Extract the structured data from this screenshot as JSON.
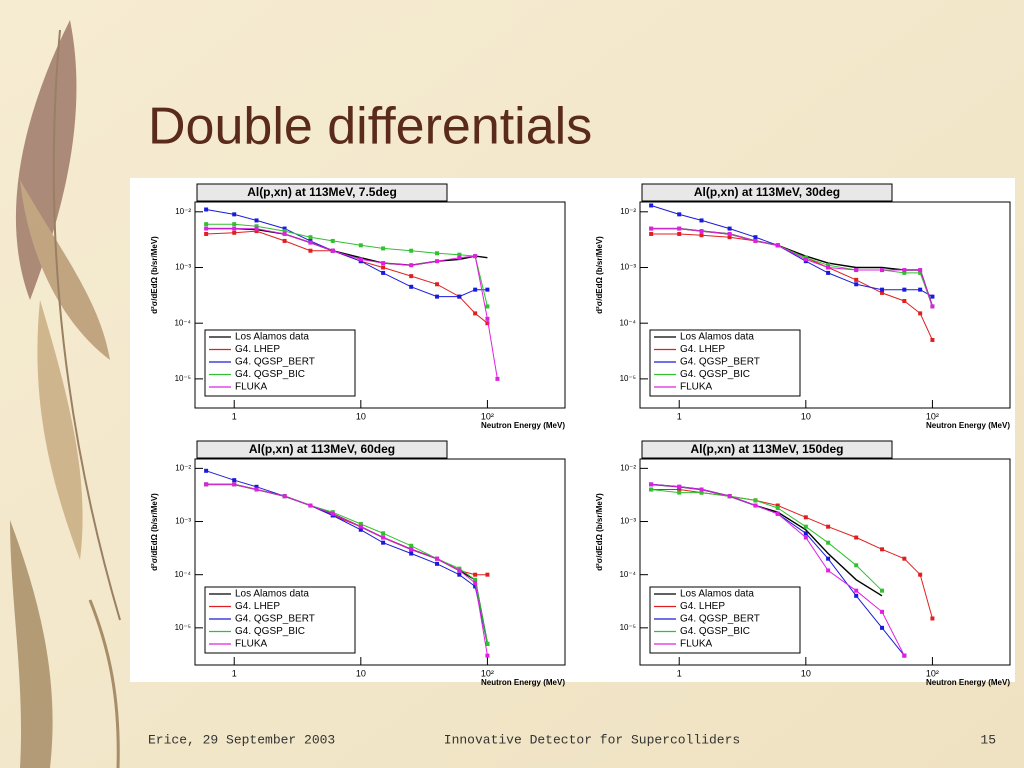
{
  "title": "Double differentials",
  "footer": {
    "left": "Erice, 29 September 2003",
    "center": "Innovative Detector for Supercolliders",
    "page": "15"
  },
  "chart_data": [
    {
      "type": "line",
      "title": "Al(p,xn) at 113MeV, 7.5deg",
      "x_label": "Neutron Energy (MeV)",
      "y_label": "d²σ/dEdΩ (b/sr/MeV)",
      "log_x": true,
      "log_y": true,
      "legend": "lower left",
      "xlim": [
        0.49,
        410
      ],
      "ylim": [
        3e-06,
        0.015
      ],
      "xticks": [
        1,
        10,
        {
          "value": 100,
          "label": "10²"
        }
      ],
      "yticks": [
        {
          "value": 0.01,
          "label": "10⁻²"
        },
        {
          "value": 0.001,
          "label": "10⁻³"
        },
        {
          "value": 0.0001,
          "label": "10⁻⁴"
        },
        {
          "value": 1e-05,
          "label": "10⁻⁵"
        }
      ],
      "x": [
        0.6,
        1,
        1.5,
        2.5,
        4,
        6,
        10,
        15,
        25,
        40,
        60,
        80,
        100,
        120
      ],
      "series": [
        {
          "name": "Los Alamos data",
          "color": "#000000",
          "values": [
            0.005,
            0.005,
            0.0048,
            0.004,
            0.0028,
            0.002,
            0.0015,
            0.0012,
            0.0011,
            0.0013,
            0.0014,
            0.0016,
            0.0015,
            null
          ]
        },
        {
          "name": "G4. LHEP",
          "color": "#e02020",
          "values": [
            0.004,
            0.0042,
            0.0045,
            0.003,
            0.002,
            0.002,
            0.0013,
            0.001,
            0.0007,
            0.0005,
            0.0003,
            0.00015,
            0.0001,
            null
          ]
        },
        {
          "name": "G4. QGSP_BERT",
          "color": "#1a1adc",
          "values": [
            0.011,
            0.009,
            0.007,
            0.005,
            0.003,
            0.002,
            0.0013,
            0.0008,
            0.00045,
            0.0003,
            0.0003,
            0.0004,
            0.0004,
            null
          ]
        },
        {
          "name": "G4. QGSP_BIC",
          "color": "#30c030",
          "values": [
            0.006,
            0.006,
            0.0055,
            0.0045,
            0.0035,
            0.003,
            0.0025,
            0.0022,
            0.002,
            0.0018,
            0.0017,
            0.0016,
            0.0002,
            null
          ]
        },
        {
          "name": "FLUKA",
          "color": "#e020e0",
          "values": [
            0.005,
            0.005,
            0.005,
            0.004,
            0.0028,
            0.002,
            0.0014,
            0.0012,
            0.0011,
            0.0013,
            0.0015,
            0.0016,
            0.00012,
            1e-05
          ]
        }
      ]
    },
    {
      "type": "line",
      "title": "Al(p,xn) at 113MeV, 30deg",
      "x_label": "Neutron Energy (MeV)",
      "y_label": "d²σ/dEdΩ (b/sr/MeV)",
      "log_x": true,
      "log_y": true,
      "legend": "lower left",
      "xlim": [
        0.49,
        410
      ],
      "ylim": [
        3e-06,
        0.015
      ],
      "xticks": [
        1,
        10,
        {
          "value": 100,
          "label": "10²"
        }
      ],
      "yticks": [
        {
          "value": 0.01,
          "label": "10⁻²"
        },
        {
          "value": 0.001,
          "label": "10⁻³"
        },
        {
          "value": 0.0001,
          "label": "10⁻⁴"
        },
        {
          "value": 1e-05,
          "label": "10⁻⁵"
        }
      ],
      "x": [
        0.6,
        1,
        1.5,
        2.5,
        4,
        6,
        10,
        15,
        25,
        40,
        60,
        80,
        100,
        120
      ],
      "series": [
        {
          "name": "Los Alamos data",
          "color": "#000000",
          "values": [
            0.005,
            0.005,
            0.0045,
            0.004,
            0.003,
            0.0025,
            0.0016,
            0.0012,
            0.001,
            0.001,
            0.0009,
            0.0009,
            0.0002,
            null
          ]
        },
        {
          "name": "G4. LHEP",
          "color": "#e02020",
          "values": [
            0.004,
            0.004,
            0.0038,
            0.0035,
            0.003,
            0.0025,
            0.0015,
            0.001,
            0.0006,
            0.00035,
            0.00025,
            0.00015,
            5e-05,
            null
          ]
        },
        {
          "name": "G4. QGSP_BERT",
          "color": "#1a1adc",
          "values": [
            0.013,
            0.009,
            0.007,
            0.005,
            0.0035,
            0.0025,
            0.0013,
            0.0008,
            0.0005,
            0.0004,
            0.0004,
            0.0004,
            0.0003,
            null
          ]
        },
        {
          "name": "G4. QGSP_BIC",
          "color": "#30c030",
          "values": [
            0.005,
            0.005,
            0.0045,
            0.004,
            0.003,
            0.0025,
            0.0015,
            0.0011,
            0.0009,
            0.0009,
            0.0008,
            0.0008,
            0.0002,
            null
          ]
        },
        {
          "name": "FLUKA",
          "color": "#e020e0",
          "values": [
            0.005,
            0.005,
            0.0045,
            0.004,
            0.003,
            0.0025,
            0.0014,
            0.001,
            0.0009,
            0.0009,
            0.0009,
            0.0009,
            0.0002,
            null
          ]
        }
      ]
    },
    {
      "type": "line",
      "title": "Al(p,xn) at 113MeV, 60deg",
      "x_label": "Neutron Energy (MeV)",
      "y_label": "d²σ/dEdΩ (b/sr/MeV)",
      "log_x": true,
      "log_y": true,
      "legend": "lower left",
      "xlim": [
        0.49,
        410
      ],
      "ylim": [
        2e-06,
        0.015
      ],
      "xticks": [
        1,
        10,
        {
          "value": 100,
          "label": "10²"
        }
      ],
      "yticks": [
        {
          "value": 0.01,
          "label": "10⁻²"
        },
        {
          "value": 0.001,
          "label": "10⁻³"
        },
        {
          "value": 0.0001,
          "label": "10⁻⁴"
        },
        {
          "value": 1e-05,
          "label": "10⁻⁵"
        }
      ],
      "x": [
        0.6,
        1,
        1.5,
        2.5,
        4,
        6,
        10,
        15,
        25,
        40,
        60,
        80,
        100,
        120
      ],
      "series": [
        {
          "name": "Los Alamos data",
          "color": "#000000",
          "values": [
            0.005,
            0.005,
            0.004,
            0.003,
            0.002,
            0.0014,
            0.0008,
            0.0005,
            0.0003,
            0.0002,
            0.00012,
            8e-05,
            5e-06,
            null
          ]
        },
        {
          "name": "G4. LHEP",
          "color": "#e02020",
          "values": [
            0.005,
            0.005,
            0.004,
            0.003,
            0.002,
            0.0013,
            0.0008,
            0.0005,
            0.0003,
            0.0002,
            0.00012,
            0.0001,
            0.0001,
            null
          ]
        },
        {
          "name": "G4. QGSP_BERT",
          "color": "#1a1adc",
          "values": [
            0.009,
            0.006,
            0.0045,
            0.003,
            0.002,
            0.0013,
            0.0007,
            0.0004,
            0.00025,
            0.00016,
            0.0001,
            6e-05,
            5e-06,
            null
          ]
        },
        {
          "name": "G4. QGSP_BIC",
          "color": "#30c030",
          "values": [
            0.005,
            0.005,
            0.004,
            0.003,
            0.002,
            0.0015,
            0.0009,
            0.0006,
            0.00035,
            0.0002,
            0.00013,
            8e-05,
            5e-06,
            null
          ]
        },
        {
          "name": "FLUKA",
          "color": "#e020e0",
          "values": [
            0.005,
            0.005,
            0.004,
            0.003,
            0.002,
            0.0014,
            0.0008,
            0.0005,
            0.0003,
            0.0002,
            0.00012,
            7e-05,
            3e-06,
            null
          ]
        }
      ]
    },
    {
      "type": "line",
      "title": "Al(p,xn) at 113MeV, 150deg",
      "x_label": "Neutron Energy (MeV)",
      "y_label": "d²σ/dEdΩ (b/sr/MeV)",
      "log_x": true,
      "log_y": true,
      "legend": "lower left",
      "xlim": [
        0.49,
        410
      ],
      "ylim": [
        2e-06,
        0.015
      ],
      "xticks": [
        1,
        10,
        {
          "value": 100,
          "label": "10²"
        }
      ],
      "yticks": [
        {
          "value": 0.01,
          "label": "10⁻²"
        },
        {
          "value": 0.001,
          "label": "10⁻³"
        },
        {
          "value": 0.0001,
          "label": "10⁻⁴"
        },
        {
          "value": 1e-05,
          "label": "10⁻⁵"
        }
      ],
      "x": [
        0.6,
        1,
        1.5,
        2.5,
        4,
        6,
        10,
        15,
        25,
        40,
        60,
        80,
        100,
        120
      ],
      "series": [
        {
          "name": "Los Alamos data",
          "color": "#000000",
          "values": [
            0.005,
            0.0045,
            0.004,
            0.003,
            0.002,
            0.0015,
            0.0007,
            0.00025,
            8e-05,
            4e-05,
            null,
            null,
            null,
            null
          ]
        },
        {
          "name": "G4. LHEP",
          "color": "#e02020",
          "values": [
            0.004,
            0.004,
            0.0035,
            0.003,
            0.0025,
            0.002,
            0.0012,
            0.0008,
            0.0005,
            0.0003,
            0.0002,
            0.0001,
            1.5e-05,
            null
          ]
        },
        {
          "name": "G4. QGSP_BERT",
          "color": "#1a1adc",
          "values": [
            0.005,
            0.0045,
            0.004,
            0.003,
            0.002,
            0.0014,
            0.0006,
            0.0002,
            4e-05,
            1e-05,
            3e-06,
            null,
            null,
            null
          ]
        },
        {
          "name": "G4. QGSP_BIC",
          "color": "#30c030",
          "values": [
            0.004,
            0.0035,
            0.0035,
            0.003,
            0.0025,
            0.0018,
            0.0008,
            0.0004,
            0.00015,
            5e-05,
            null,
            null,
            null,
            null
          ]
        },
        {
          "name": "FLUKA",
          "color": "#e020e0",
          "values": [
            0.005,
            0.0045,
            0.004,
            0.003,
            0.002,
            0.0014,
            0.0005,
            0.00012,
            5e-05,
            2e-05,
            3e-06,
            null,
            null,
            null
          ]
        }
      ]
    }
  ]
}
